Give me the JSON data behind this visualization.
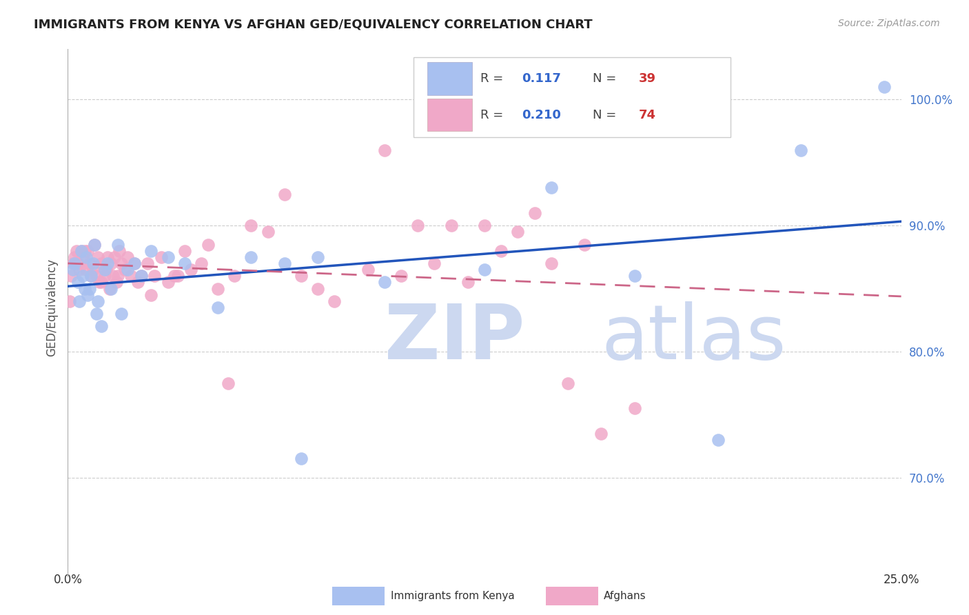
{
  "title": "IMMIGRANTS FROM KENYA VS AFGHAN GED/EQUIVALENCY CORRELATION CHART",
  "source": "Source: ZipAtlas.com",
  "ylabel": "GED/Equivalency",
  "ylabel_right_ticks": [
    70.0,
    80.0,
    90.0,
    100.0
  ],
  "xlim": [
    0.0,
    25.0
  ],
  "ylim": [
    63.0,
    104.0
  ],
  "legend_labels": [
    "Immigrants from Kenya",
    "Afghans"
  ],
  "legend_R": [
    0.117,
    0.21
  ],
  "legend_N": [
    39,
    74
  ],
  "kenya_color": "#a8c0f0",
  "afghan_color": "#f0a8c8",
  "kenya_line_color": "#2255bb",
  "afghan_line_color": "#cc6688",
  "watermark_zip": "ZIP",
  "watermark_atlas": "atlas",
  "watermark_color": "#ccd8f0",
  "kenya_x": [
    0.15,
    0.2,
    0.3,
    0.35,
    0.4,
    0.45,
    0.5,
    0.55,
    0.6,
    0.65,
    0.7,
    0.75,
    0.8,
    0.85,
    0.9,
    1.0,
    1.1,
    1.2,
    1.3,
    1.5,
    1.6,
    1.8,
    2.0,
    2.2,
    2.5,
    3.0,
    3.5,
    4.5,
    5.5,
    6.5,
    7.5,
    9.5,
    12.5,
    14.5,
    17.0,
    19.5,
    22.0,
    24.5,
    7.0
  ],
  "kenya_y": [
    86.5,
    87.0,
    85.5,
    84.0,
    88.0,
    86.0,
    85.0,
    87.5,
    84.5,
    85.0,
    86.0,
    87.0,
    88.5,
    83.0,
    84.0,
    82.0,
    86.5,
    87.0,
    85.0,
    88.5,
    83.0,
    86.5,
    87.0,
    86.0,
    88.0,
    87.5,
    87.0,
    83.5,
    87.5,
    87.0,
    87.5,
    85.5,
    86.5,
    93.0,
    86.0,
    73.0,
    96.0,
    101.0,
    71.5
  ],
  "afghan_x": [
    0.05,
    0.1,
    0.15,
    0.2,
    0.25,
    0.3,
    0.35,
    0.4,
    0.45,
    0.5,
    0.55,
    0.6,
    0.65,
    0.7,
    0.75,
    0.8,
    0.85,
    0.9,
    0.95,
    1.0,
    1.0,
    1.1,
    1.15,
    1.2,
    1.25,
    1.3,
    1.35,
    1.4,
    1.45,
    1.5,
    1.55,
    1.6,
    1.7,
    1.8,
    1.9,
    2.0,
    2.1,
    2.2,
    2.4,
    2.6,
    2.8,
    3.0,
    3.3,
    3.7,
    4.0,
    4.5,
    5.0,
    5.5,
    6.0,
    6.5,
    7.0,
    7.5,
    8.0,
    9.0,
    10.0,
    11.0,
    12.0,
    13.0,
    14.0,
    15.0,
    16.0,
    17.0,
    3.5,
    3.2,
    2.5,
    4.2,
    4.8,
    9.5,
    10.5,
    11.5,
    12.5,
    13.5,
    14.5,
    15.5
  ],
  "afghan_y": [
    84.0,
    86.0,
    87.0,
    87.5,
    88.0,
    87.0,
    86.5,
    88.0,
    87.5,
    88.0,
    86.5,
    88.0,
    87.0,
    86.0,
    86.5,
    88.5,
    86.0,
    87.5,
    85.5,
    87.0,
    85.5,
    86.0,
    86.5,
    87.5,
    85.0,
    87.0,
    86.0,
    87.5,
    85.5,
    86.0,
    88.0,
    87.0,
    86.5,
    87.5,
    86.0,
    87.0,
    85.5,
    86.0,
    87.0,
    86.0,
    87.5,
    85.5,
    86.0,
    86.5,
    87.0,
    85.0,
    86.0,
    90.0,
    89.5,
    92.5,
    86.0,
    85.0,
    84.0,
    86.5,
    86.0,
    87.0,
    85.5,
    88.0,
    91.0,
    77.5,
    73.5,
    75.5,
    88.0,
    86.0,
    84.5,
    88.5,
    77.5,
    96.0,
    90.0,
    90.0,
    90.0,
    89.5,
    87.0,
    88.5
  ],
  "bottom_legend_labels": [
    "Immigrants from Kenya",
    "Afghans"
  ]
}
